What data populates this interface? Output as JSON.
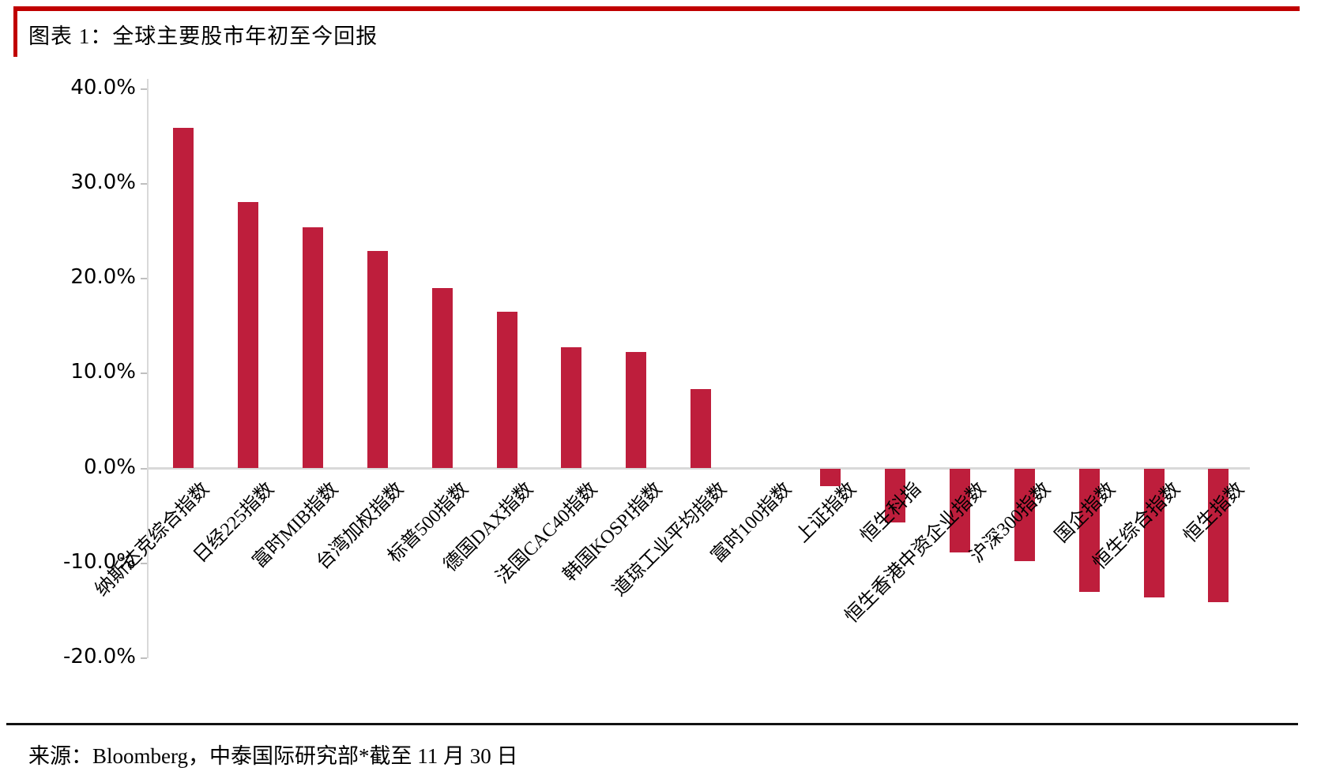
{
  "header": {
    "title": "图表 1：全球主要股市年初至今回报"
  },
  "footer": {
    "source": "来源：Bloomberg，中泰国际研究部*截至 11 月 30 日"
  },
  "colors": {
    "accent_red": "#c00000",
    "bar_red": "#be1e3c",
    "axis_gray": "#d9d9d9",
    "divider_black": "#111111"
  },
  "chart_data": {
    "type": "bar",
    "title": "图表 1：全球主要股市年初至今回报",
    "xlabel": "",
    "ylabel": "",
    "unit": "%",
    "ylim": [
      -20,
      40
    ],
    "grid": false,
    "legend": "none",
    "yticks": {
      "values": [
        40,
        30,
        20,
        10,
        0,
        -10,
        -20
      ],
      "labels": [
        "40.0%",
        "30.0%",
        "20.0%",
        "10.0%",
        "0.0%",
        "-10.0%",
        "-20.0%"
      ]
    },
    "categories": [
      "纳斯达克综合指数",
      "日经225指数",
      "富时MIB指数",
      "台湾加权指数",
      "标普500指数",
      "德国DAX指数",
      "法国CAC40指数",
      "韩国KOSPI指数",
      "道琼工业平均指数",
      "富时100指数",
      "上证指数",
      "恒生科指",
      "恒生香港中资企业指数",
      "沪深300指数",
      "国企指数",
      "恒生综合指数",
      "恒生指数"
    ],
    "values": [
      35.9,
      28.1,
      25.4,
      22.9,
      19.0,
      16.5,
      12.8,
      12.3,
      8.4,
      0.0,
      -1.9,
      -5.7,
      -8.9,
      -9.8,
      -13.0,
      -13.6,
      -14.1
    ]
  }
}
